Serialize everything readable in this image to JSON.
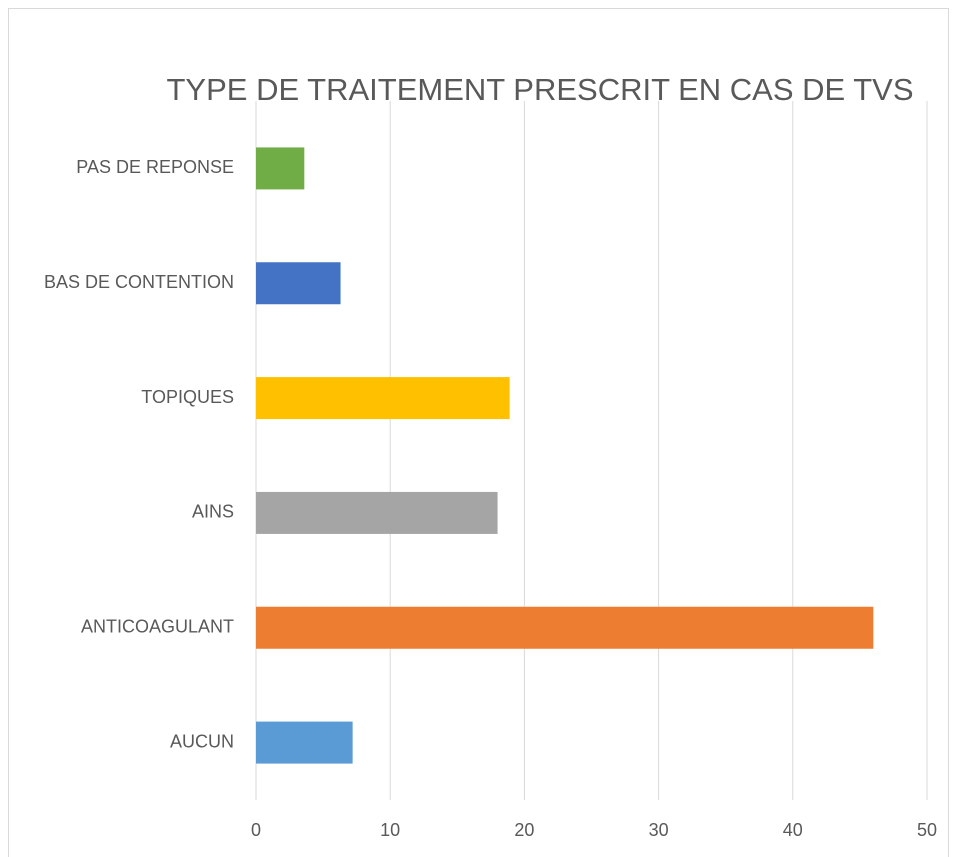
{
  "chart_data": {
    "type": "bar",
    "orientation": "horizontal",
    "title": "TYPE DE TRAITEMENT PRESCRIT EN CAS DE TVS",
    "categories": [
      "AUCUN",
      "ANTICOAGULANT",
      "AINS",
      "TOPIQUES",
      "BAS DE CONTENTION",
      "PAS DE REPONSE"
    ],
    "values": [
      7.2,
      46,
      18,
      18.9,
      6.3,
      3.6
    ],
    "colors": [
      "#5b9bd5",
      "#ed7d31",
      "#a5a5a5",
      "#ffc000",
      "#4472c4",
      "#70ad47"
    ],
    "xlim": [
      0,
      50
    ],
    "xticks": [
      0,
      10,
      20,
      30,
      40,
      50
    ],
    "grid": true
  }
}
